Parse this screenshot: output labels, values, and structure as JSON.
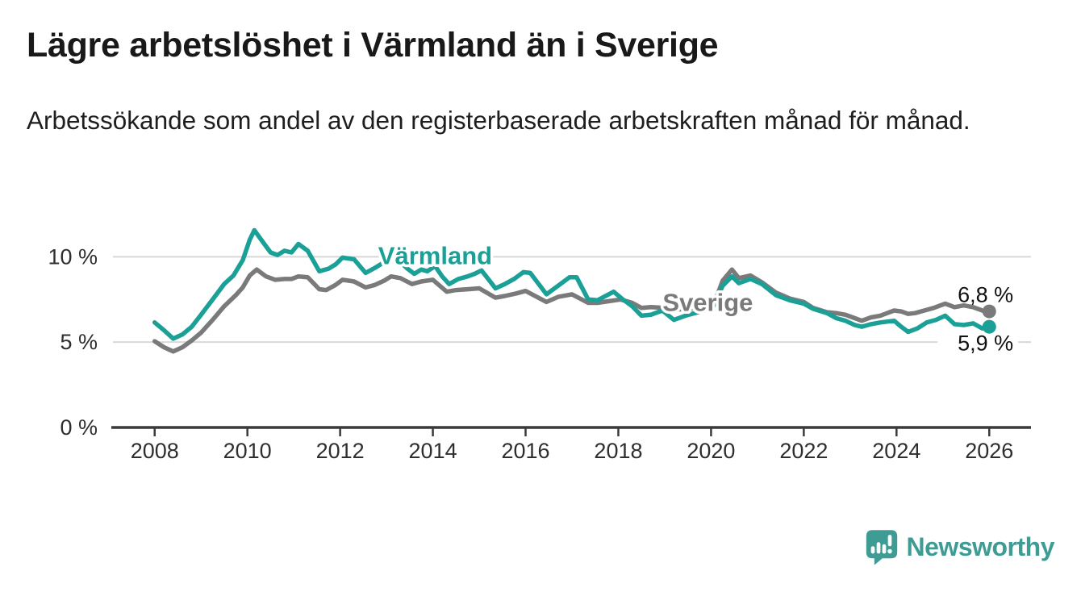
{
  "footer": {
    "brand": "Newsworthy"
  },
  "colors": {
    "varmland": "#1aa096",
    "sverige": "#7a7a7a",
    "grid": "#d8d8d8",
    "axis": "#3a3a3a",
    "tick_text": "#2e2e2e",
    "value_text": "#101010",
    "brand": "#3e9c95",
    "logo_bars": "#ffffff"
  },
  "chart_data": {
    "type": "line",
    "title": "Lägre arbetslöshet i Värmland än i Sverige",
    "subtitle": "Arbetssökande som andel av den registerbaserade arbetskraften månad för månad.",
    "xlabel": "",
    "ylabel": "",
    "xlim": [
      2007.1,
      2026.9
    ],
    "ylim": [
      0,
      12
    ],
    "grid": "horizontal",
    "legend_position": "inline-line-labels",
    "x_ticks": [
      {
        "v": 2008,
        "label": "2008"
      },
      {
        "v": 2010,
        "label": "2010"
      },
      {
        "v": 2012,
        "label": "2012"
      },
      {
        "v": 2014,
        "label": "2014"
      },
      {
        "v": 2016,
        "label": "2016"
      },
      {
        "v": 2018,
        "label": "2018"
      },
      {
        "v": 2020,
        "label": "2020"
      },
      {
        "v": 2022,
        "label": "2022"
      },
      {
        "v": 2024,
        "label": "2024"
      },
      {
        "v": 2026,
        "label": "2026"
      }
    ],
    "y_ticks": [
      {
        "v": 0,
        "label": "0 %"
      },
      {
        "v": 5,
        "label": "5 %"
      },
      {
        "v": 10,
        "label": "10 %"
      }
    ],
    "series": [
      {
        "name": "Sverige",
        "slug": "sverige",
        "color_key": "sverige",
        "end_dot": true,
        "last_value_label": "6,8 %",
        "points": [
          [
            2008.0,
            5.05
          ],
          [
            2008.2,
            4.7
          ],
          [
            2008.4,
            4.45
          ],
          [
            2008.6,
            4.7
          ],
          [
            2008.8,
            5.1
          ],
          [
            2009.0,
            5.55
          ],
          [
            2009.25,
            6.3
          ],
          [
            2009.5,
            7.1
          ],
          [
            2009.75,
            7.75
          ],
          [
            2009.9,
            8.2
          ],
          [
            2010.05,
            8.9
          ],
          [
            2010.2,
            9.25
          ],
          [
            2010.4,
            8.85
          ],
          [
            2010.6,
            8.65
          ],
          [
            2010.8,
            8.7
          ],
          [
            2010.95,
            8.7
          ],
          [
            2011.1,
            8.85
          ],
          [
            2011.3,
            8.8
          ],
          [
            2011.55,
            8.1
          ],
          [
            2011.7,
            8.05
          ],
          [
            2011.9,
            8.35
          ],
          [
            2012.05,
            8.65
          ],
          [
            2012.3,
            8.55
          ],
          [
            2012.55,
            8.2
          ],
          [
            2012.75,
            8.35
          ],
          [
            2012.95,
            8.6
          ],
          [
            2013.1,
            8.85
          ],
          [
            2013.3,
            8.75
          ],
          [
            2013.55,
            8.4
          ],
          [
            2013.75,
            8.55
          ],
          [
            2014.0,
            8.65
          ],
          [
            2014.3,
            7.95
          ],
          [
            2014.5,
            8.05
          ],
          [
            2014.75,
            8.1
          ],
          [
            2015.0,
            8.15
          ],
          [
            2015.35,
            7.6
          ],
          [
            2015.55,
            7.7
          ],
          [
            2015.8,
            7.85
          ],
          [
            2016.0,
            8.0
          ],
          [
            2016.45,
            7.35
          ],
          [
            2016.7,
            7.65
          ],
          [
            2017.0,
            7.8
          ],
          [
            2017.35,
            7.3
          ],
          [
            2017.55,
            7.3
          ],
          [
            2017.8,
            7.4
          ],
          [
            2018.05,
            7.5
          ],
          [
            2018.3,
            7.3
          ],
          [
            2018.5,
            7.0
          ],
          [
            2018.7,
            7.05
          ],
          [
            2019.0,
            7.0
          ],
          [
            2019.25,
            6.9
          ],
          [
            2019.5,
            6.95
          ],
          [
            2019.75,
            7.0
          ],
          [
            2020.05,
            7.15
          ],
          [
            2020.25,
            8.6
          ],
          [
            2020.45,
            9.25
          ],
          [
            2020.6,
            8.75
          ],
          [
            2020.85,
            8.9
          ],
          [
            2021.1,
            8.5
          ],
          [
            2021.4,
            7.9
          ],
          [
            2021.7,
            7.55
          ],
          [
            2022.0,
            7.35
          ],
          [
            2022.2,
            7.0
          ],
          [
            2022.5,
            6.75
          ],
          [
            2022.7,
            6.7
          ],
          [
            2022.9,
            6.6
          ],
          [
            2023.1,
            6.4
          ],
          [
            2023.25,
            6.25
          ],
          [
            2023.45,
            6.45
          ],
          [
            2023.65,
            6.55
          ],
          [
            2023.8,
            6.7
          ],
          [
            2023.95,
            6.85
          ],
          [
            2024.1,
            6.8
          ],
          [
            2024.25,
            6.65
          ],
          [
            2024.4,
            6.7
          ],
          [
            2024.6,
            6.85
          ],
          [
            2024.8,
            7.0
          ],
          [
            2025.05,
            7.25
          ],
          [
            2025.25,
            7.05
          ],
          [
            2025.45,
            7.15
          ],
          [
            2025.65,
            7.05
          ],
          [
            2025.85,
            6.85
          ],
          [
            2026.0,
            6.8
          ]
        ]
      },
      {
        "name": "Värmland",
        "slug": "varmland",
        "color_key": "varmland",
        "end_dot": true,
        "last_value_label": "5,9 %",
        "points": [
          [
            2008.0,
            6.15
          ],
          [
            2008.2,
            5.7
          ],
          [
            2008.4,
            5.2
          ],
          [
            2008.6,
            5.45
          ],
          [
            2008.8,
            5.9
          ],
          [
            2009.0,
            6.6
          ],
          [
            2009.25,
            7.5
          ],
          [
            2009.5,
            8.4
          ],
          [
            2009.7,
            8.9
          ],
          [
            2009.9,
            9.8
          ],
          [
            2010.05,
            11.0
          ],
          [
            2010.15,
            11.55
          ],
          [
            2010.35,
            10.8
          ],
          [
            2010.5,
            10.25
          ],
          [
            2010.65,
            10.1
          ],
          [
            2010.8,
            10.35
          ],
          [
            2010.95,
            10.25
          ],
          [
            2011.1,
            10.75
          ],
          [
            2011.3,
            10.35
          ],
          [
            2011.55,
            9.15
          ],
          [
            2011.75,
            9.3
          ],
          [
            2011.9,
            9.55
          ],
          [
            2012.05,
            9.95
          ],
          [
            2012.3,
            9.85
          ],
          [
            2012.55,
            9.05
          ],
          [
            2012.75,
            9.35
          ],
          [
            2012.9,
            9.6
          ],
          [
            2013.1,
            10.1
          ],
          [
            2013.3,
            9.7
          ],
          [
            2013.45,
            9.3
          ],
          [
            2013.6,
            9.0
          ],
          [
            2013.75,
            9.25
          ],
          [
            2013.88,
            9.15
          ],
          [
            2014.05,
            9.45
          ],
          [
            2014.2,
            8.85
          ],
          [
            2014.35,
            8.4
          ],
          [
            2014.55,
            8.7
          ],
          [
            2014.75,
            8.85
          ],
          [
            2014.9,
            9.0
          ],
          [
            2015.05,
            9.2
          ],
          [
            2015.35,
            8.15
          ],
          [
            2015.55,
            8.4
          ],
          [
            2015.75,
            8.7
          ],
          [
            2015.95,
            9.1
          ],
          [
            2016.1,
            9.05
          ],
          [
            2016.45,
            7.8
          ],
          [
            2016.7,
            8.3
          ],
          [
            2016.95,
            8.8
          ],
          [
            2017.1,
            8.8
          ],
          [
            2017.35,
            7.5
          ],
          [
            2017.55,
            7.45
          ],
          [
            2017.9,
            7.95
          ],
          [
            2018.1,
            7.5
          ],
          [
            2018.3,
            7.1
          ],
          [
            2018.5,
            6.55
          ],
          [
            2018.7,
            6.6
          ],
          [
            2018.95,
            6.85
          ],
          [
            2019.2,
            6.3
          ],
          [
            2019.45,
            6.55
          ],
          [
            2019.65,
            6.7
          ],
          [
            2019.85,
            6.85
          ],
          [
            2020.05,
            7.1
          ],
          [
            2020.25,
            8.3
          ],
          [
            2020.45,
            8.85
          ],
          [
            2020.6,
            8.45
          ],
          [
            2020.85,
            8.7
          ],
          [
            2021.1,
            8.4
          ],
          [
            2021.4,
            7.75
          ],
          [
            2021.7,
            7.45
          ],
          [
            2022.0,
            7.25
          ],
          [
            2022.2,
            6.95
          ],
          [
            2022.5,
            6.7
          ],
          [
            2022.7,
            6.4
          ],
          [
            2022.9,
            6.25
          ],
          [
            2023.1,
            6.0
          ],
          [
            2023.25,
            5.9
          ],
          [
            2023.45,
            6.05
          ],
          [
            2023.65,
            6.15
          ],
          [
            2023.95,
            6.25
          ],
          [
            2024.1,
            5.9
          ],
          [
            2024.25,
            5.6
          ],
          [
            2024.45,
            5.8
          ],
          [
            2024.65,
            6.15
          ],
          [
            2024.85,
            6.3
          ],
          [
            2025.05,
            6.55
          ],
          [
            2025.25,
            6.05
          ],
          [
            2025.45,
            6.0
          ],
          [
            2025.65,
            6.1
          ],
          [
            2025.85,
            5.8
          ],
          [
            2026.0,
            5.9
          ]
        ]
      }
    ],
    "line_labels": [
      {
        "text": "Värmland",
        "slug": "varmland",
        "color_key": "varmland",
        "x": 2014.05,
        "y": 10.05
      },
      {
        "text": "Sverige",
        "slug": "sverige",
        "color_key": "sverige",
        "x": 2019.93,
        "y": 7.3
      }
    ],
    "end_labels": [
      {
        "text": "6,8 %",
        "slug": "sverige",
        "x": 2026.52,
        "y": 7.8
      },
      {
        "text": "5,9 %",
        "slug": "varmland",
        "x": 2026.52,
        "y": 4.95
      }
    ]
  }
}
